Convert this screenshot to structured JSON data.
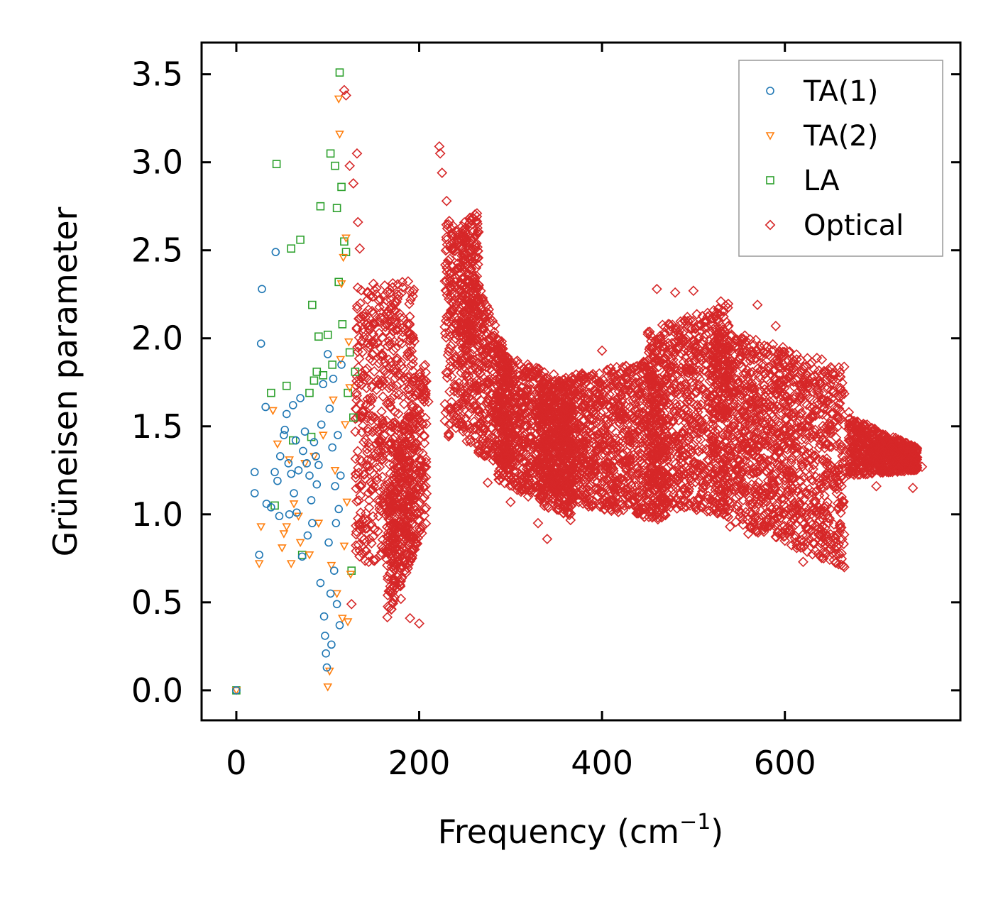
{
  "chart_data": {
    "type": "scatter",
    "xlabel": "Frequency (cm",
    "xlabel_sup": "−1",
    "xlabel_close": ")",
    "ylabel": "Grüneisen parameter",
    "xlim": [
      -38,
      792
    ],
    "ylim": [
      -0.17,
      3.68
    ],
    "xticks": [
      0,
      200,
      400,
      600
    ],
    "xtick_labels": [
      "0",
      "200",
      "400",
      "600"
    ],
    "yticks": [
      0.0,
      0.5,
      1.0,
      1.5,
      2.0,
      2.5,
      3.0,
      3.5
    ],
    "ytick_labels": [
      "0.0",
      "0.5",
      "1.0",
      "1.5",
      "2.0",
      "2.5",
      "3.0",
      "3.5"
    ],
    "grid": false,
    "legend_position": "top-right",
    "series": [
      {
        "name": "TA(1)",
        "marker": "circle",
        "color": "#1f77b4",
        "points": [
          [
            0,
            0.0
          ],
          [
            20,
            1.24
          ],
          [
            20,
            1.12
          ],
          [
            25,
            0.77
          ],
          [
            28,
            2.28
          ],
          [
            27,
            1.97
          ],
          [
            32,
            1.61
          ],
          [
            33,
            1.06
          ],
          [
            38,
            1.04
          ],
          [
            42,
            1.24
          ],
          [
            43,
            2.49
          ],
          [
            45,
            1.19
          ],
          [
            47,
            0.99
          ],
          [
            48,
            1.33
          ],
          [
            52,
            1.45
          ],
          [
            53,
            1.48
          ],
          [
            55,
            1.57
          ],
          [
            57,
            1.29
          ],
          [
            58,
            1.0
          ],
          [
            60,
            1.23
          ],
          [
            62,
            1.62
          ],
          [
            63,
            1.12
          ],
          [
            65,
            1.42
          ],
          [
            66,
            1.01
          ],
          [
            68,
            1.25
          ],
          [
            70,
            1.66
          ],
          [
            72,
            0.76
          ],
          [
            73,
            1.36
          ],
          [
            75,
            1.47
          ],
          [
            77,
            1.29
          ],
          [
            78,
            0.88
          ],
          [
            80,
            1.22
          ],
          [
            82,
            1.08
          ],
          [
            83,
            0.95
          ],
          [
            85,
            1.41
          ],
          [
            87,
            1.33
          ],
          [
            88,
            1.17
          ],
          [
            90,
            1.28
          ],
          [
            92,
            0.61
          ],
          [
            93,
            1.51
          ],
          [
            95,
            1.74
          ],
          [
            96,
            0.42
          ],
          [
            97,
            0.31
          ],
          [
            98,
            0.21
          ],
          [
            99,
            0.13
          ],
          [
            100,
            1.91
          ],
          [
            101,
            0.84
          ],
          [
            102,
            1.6
          ],
          [
            103,
            0.55
          ],
          [
            104,
            0.26
          ],
          [
            105,
            1.38
          ],
          [
            106,
            1.77
          ],
          [
            107,
            0.68
          ],
          [
            108,
            1.16
          ],
          [
            109,
            0.95
          ],
          [
            110,
            0.49
          ],
          [
            111,
            1.45
          ],
          [
            112,
            1.03
          ],
          [
            113,
            0.37
          ],
          [
            114,
            1.22
          ],
          [
            115,
            1.85
          ]
        ]
      },
      {
        "name": "TA(2)",
        "marker": "triangle-down",
        "color": "#ff7f0e",
        "points": [
          [
            0,
            0.0
          ],
          [
            25,
            0.72
          ],
          [
            27,
            0.93
          ],
          [
            40,
            1.59
          ],
          [
            45,
            1.4
          ],
          [
            50,
            0.81
          ],
          [
            52,
            0.89
          ],
          [
            55,
            0.93
          ],
          [
            58,
            1.31
          ],
          [
            60,
            0.72
          ],
          [
            63,
            1.06
          ],
          [
            68,
            0.99
          ],
          [
            70,
            0.84
          ],
          [
            75,
            1.29
          ],
          [
            80,
            0.77
          ],
          [
            85,
            1.33
          ],
          [
            90,
            0.95
          ],
          [
            95,
            1.45
          ],
          [
            100,
            0.02
          ],
          [
            102,
            0.11
          ],
          [
            104,
            0.71
          ],
          [
            106,
            1.65
          ],
          [
            108,
            1.25
          ],
          [
            110,
            0.55
          ],
          [
            112,
            3.36
          ],
          [
            113,
            3.16
          ],
          [
            114,
            1.88
          ],
          [
            115,
            2.31
          ],
          [
            116,
            0.41
          ],
          [
            117,
            2.46
          ],
          [
            118,
            0.82
          ],
          [
            119,
            1.51
          ],
          [
            120,
            2.57
          ],
          [
            121,
            1.07
          ],
          [
            122,
            0.39
          ],
          [
            123,
            1.98
          ],
          [
            124,
            1.72
          ],
          [
            125,
            0.66
          ]
        ]
      },
      {
        "name": "LA",
        "marker": "square",
        "color": "#2ca02c",
        "points": [
          [
            0,
            0.0
          ],
          [
            38,
            1.69
          ],
          [
            42,
            1.05
          ],
          [
            44,
            2.99
          ],
          [
            55,
            1.73
          ],
          [
            60,
            2.51
          ],
          [
            62,
            1.42
          ],
          [
            70,
            2.56
          ],
          [
            72,
            0.77
          ],
          [
            80,
            1.69
          ],
          [
            82,
            1.44
          ],
          [
            83,
            2.19
          ],
          [
            85,
            1.76
          ],
          [
            88,
            1.81
          ],
          [
            90,
            2.01
          ],
          [
            92,
            2.75
          ],
          [
            95,
            1.79
          ],
          [
            100,
            2.02
          ],
          [
            103,
            3.05
          ],
          [
            105,
            1.85
          ],
          [
            108,
            2.98
          ],
          [
            110,
            2.74
          ],
          [
            112,
            2.32
          ],
          [
            113,
            3.51
          ],
          [
            115,
            2.86
          ],
          [
            116,
            2.08
          ],
          [
            118,
            2.55
          ],
          [
            120,
            2.49
          ],
          [
            122,
            1.69
          ],
          [
            124,
            1.92
          ],
          [
            126,
            0.68
          ],
          [
            128,
            1.55
          ],
          [
            130,
            1.81
          ]
        ]
      },
      {
        "name": "Optical",
        "marker": "diamond",
        "color": "#d62728",
        "points": [
          [
            118,
            3.41
          ],
          [
            120,
            3.38
          ],
          [
            124,
            2.98
          ],
          [
            128,
            2.88
          ],
          [
            132,
            3.05
          ],
          [
            133,
            2.66
          ],
          [
            135,
            2.51
          ],
          [
            126,
            0.49
          ],
          [
            143,
            1.37
          ],
          [
            150,
            2.31
          ],
          [
            158,
            1.02
          ],
          [
            160,
            1.9
          ],
          [
            165,
            0.71
          ],
          [
            170,
            2.1
          ],
          [
            175,
            1.48
          ],
          [
            180,
            0.52
          ],
          [
            182,
            2.29
          ],
          [
            185,
            1.25
          ],
          [
            190,
            0.41
          ],
          [
            195,
            1.76
          ],
          [
            200,
            0.38
          ],
          [
            205,
            1.15
          ],
          [
            210,
            1.64
          ],
          [
            222,
            3.09
          ],
          [
            223,
            3.05
          ],
          [
            225,
            2.94
          ],
          [
            230,
            2.78
          ],
          [
            235,
            2.16
          ],
          [
            240,
            1.72
          ],
          [
            245,
            2.4
          ],
          [
            250,
            1.54
          ],
          [
            255,
            2.04
          ],
          [
            260,
            2.61
          ],
          [
            265,
            1.35
          ],
          [
            270,
            2.05
          ],
          [
            275,
            1.18
          ],
          [
            280,
            1.62
          ],
          [
            290,
            1.9
          ],
          [
            300,
            1.07
          ],
          [
            310,
            1.45
          ],
          [
            320,
            1.78
          ],
          [
            330,
            0.95
          ],
          [
            340,
            0.86
          ],
          [
            350,
            1.59
          ],
          [
            360,
            1.16
          ],
          [
            375,
            1.71
          ],
          [
            390,
            1.34
          ],
          [
            400,
            1.93
          ],
          [
            410,
            1.07
          ],
          [
            420,
            1.62
          ],
          [
            430,
            1.27
          ],
          [
            440,
            1.01
          ],
          [
            450,
            1.76
          ],
          [
            460,
            2.28
          ],
          [
            470,
            1.46
          ],
          [
            480,
            2.26
          ],
          [
            490,
            1.04
          ],
          [
            500,
            2.27
          ],
          [
            510,
            1.71
          ],
          [
            520,
            1.35
          ],
          [
            530,
            2.21
          ],
          [
            540,
            0.93
          ],
          [
            550,
            1.98
          ],
          [
            560,
            0.89
          ],
          [
            570,
            2.19
          ],
          [
            580,
            1.12
          ],
          [
            590,
            2.07
          ],
          [
            600,
            0.85
          ],
          [
            610,
            1.83
          ],
          [
            620,
            0.73
          ],
          [
            630,
            1.55
          ],
          [
            640,
            0.88
          ],
          [
            650,
            1.28
          ],
          [
            665,
            0.7
          ],
          [
            670,
            1.58
          ],
          [
            680,
            1.35
          ],
          [
            690,
            1.51
          ],
          [
            700,
            1.16
          ],
          [
            710,
            1.45
          ],
          [
            720,
            1.29
          ],
          [
            730,
            1.37
          ],
          [
            740,
            1.15
          ],
          [
            750,
            1.27
          ]
        ],
        "regions": [
          {
            "x": [
              130,
              195
            ],
            "y_low": [
              0.72,
              0.75
            ],
            "y_high": [
              2.3,
              2.33
            ]
          },
          {
            "x": [
              165,
              208
            ],
            "y_low": [
              0.4,
              0.95
            ],
            "y_high": [
              1.15,
              1.95
            ]
          },
          {
            "x": [
              228,
              300
            ],
            "y_low": [
              1.45,
              1.25
            ],
            "y_high": [
              2.78,
              1.86
            ]
          },
          {
            "x": [
              245,
              265
            ],
            "y_low": [
              1.8,
              2.1
            ],
            "y_high": [
              2.65,
              2.72
            ]
          },
          {
            "x": [
              285,
              370
            ],
            "y_low": [
              1.2,
              0.95
            ],
            "y_high": [
              1.92,
              1.75
            ]
          },
          {
            "x": [
              330,
              470
            ],
            "y_low": [
              1.1,
              0.95
            ],
            "y_high": [
              1.75,
              1.9
            ]
          },
          {
            "x": [
              450,
              540
            ],
            "y_low": [
              1.05,
              1.0
            ],
            "y_high": [
              2.05,
              2.2
            ]
          },
          {
            "x": [
              520,
              665
            ],
            "y_low": [
              1.0,
              0.7
            ],
            "y_high": [
              2.08,
              1.85
            ]
          },
          {
            "x": [
              670,
              745
            ],
            "y_low": [
              1.22,
              1.25
            ],
            "y_high": [
              1.55,
              1.38
            ]
          }
        ]
      }
    ]
  }
}
